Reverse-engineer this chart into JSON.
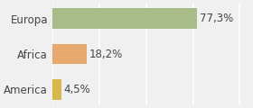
{
  "categories": [
    "America",
    "Africa",
    "Europa"
  ],
  "values": [
    4.5,
    18.2,
    77.3
  ],
  "labels": [
    "4,5%",
    "18,2%",
    "77,3%"
  ],
  "bar_colors": [
    "#d4b84a",
    "#e8a96e",
    "#a8bc8a"
  ],
  "background_color": "#f0f0f0",
  "xlim": [
    0,
    105
  ],
  "bar_height": 0.58,
  "label_fontsize": 8.5,
  "tick_fontsize": 8.5,
  "grid_color": "#ffffff",
  "grid_linewidth": 1.2,
  "grid_ticks": [
    0,
    25,
    50,
    75,
    100
  ]
}
